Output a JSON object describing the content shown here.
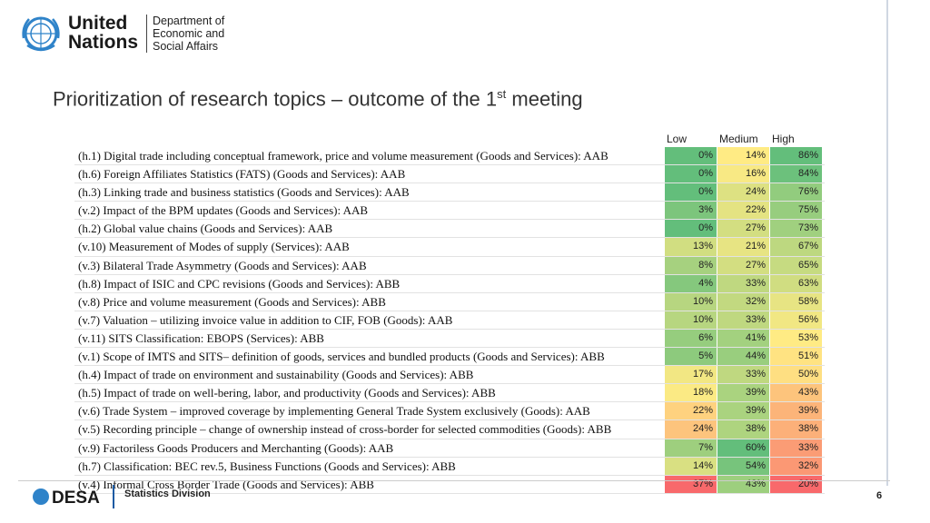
{
  "header": {
    "org_line1": "United",
    "org_line2": "Nations",
    "dept_line1": "Department of",
    "dept_line2": "Economic and",
    "dept_line3": "Social Affairs"
  },
  "slide": {
    "title_main": "Prioritization of research topics – outcome of the 1",
    "title_sup": "st",
    "title_end": " meeting"
  },
  "table": {
    "columns": [
      "Low",
      "Medium",
      "High"
    ],
    "rows": [
      {
        "label": "(h.1) Digital trade including conceptual framework, price and volume measurement (Goods and Services): AAB",
        "low": "0%",
        "medium": "14%",
        "high": "86%"
      },
      {
        "label": "(h.6) Foreign Affiliates Statistics (FATS) (Goods and Services): AAB",
        "low": "0%",
        "medium": "16%",
        "high": "84%"
      },
      {
        "label": "(h.3) Linking trade and business statistics (Goods and Services): AAB",
        "low": "0%",
        "medium": "24%",
        "high": "76%"
      },
      {
        "label": "(v.2) Impact of the BPM updates (Goods and Services): AAB",
        "low": "3%",
        "medium": "22%",
        "high": "75%"
      },
      {
        "label": "(h.2) Global value chains (Goods and Services): AAB",
        "low": "0%",
        "medium": "27%",
        "high": "73%"
      },
      {
        "label": "(v.10) Measurement of Modes of supply (Services): AAB",
        "low": "13%",
        "medium": "21%",
        "high": "67%"
      },
      {
        "label": "(v.3) Bilateral Trade Asymmetry (Goods and Services): AAB",
        "low": "8%",
        "medium": "27%",
        "high": "65%"
      },
      {
        "label": "(h.8) Impact of ISIC and CPC revisions (Goods and Services): ABB",
        "low": "4%",
        "medium": "33%",
        "high": "63%"
      },
      {
        "label": "(v.8) Price and volume measurement (Goods and Services): ABB",
        "low": "10%",
        "medium": "32%",
        "high": "58%"
      },
      {
        "label": "(v.7) Valuation – utilizing invoice value in addition to CIF, FOB (Goods): AAB",
        "low": "10%",
        "medium": "33%",
        "high": "56%"
      },
      {
        "label": "(v.11) SITS Classification: EBOPS (Services): ABB",
        "low": "6%",
        "medium": "41%",
        "high": "53%"
      },
      {
        "label": "(v.1) Scope of IMTS and SITS– definition of goods, services and bundled products (Goods and Services): ABB",
        "low": "5%",
        "medium": "44%",
        "high": "51%"
      },
      {
        "label": "(h.4) Impact of trade on environment and sustainability (Goods and Services): ABB",
        "low": "17%",
        "medium": "33%",
        "high": "50%"
      },
      {
        "label": "(h.5) Impact of trade on well-bering, labor, and productivity (Goods and Services): ABB",
        "low": "18%",
        "medium": "39%",
        "high": "43%"
      },
      {
        "label": "(v.6) Trade System – improved coverage by implementing General Trade System exclusively (Goods): AAB",
        "low": "22%",
        "medium": "39%",
        "high": "39%"
      },
      {
        "label": "(v.5) Recording principle – change of ownership instead of cross-border for selected commodities (Goods): ABB",
        "low": "24%",
        "medium": "38%",
        "high": "38%"
      },
      {
        "label": "(v.9) Factoriless Goods Producers and Merchanting (Goods): AAB",
        "low": "7%",
        "medium": "60%",
        "high": "33%"
      },
      {
        "label": "(h.7) Classification: BEC rev.5, Business Functions (Goods and Services): ABB",
        "low": "14%",
        "medium": "54%",
        "high": "32%"
      },
      {
        "label": "(v.4) Informal Cross Border Trade (Goods and Services): ABB",
        "low": "37%",
        "medium": "43%",
        "high": "20%"
      }
    ]
  },
  "footer": {
    "brand": "DESA",
    "division": "Statistics Division",
    "page": "6"
  }
}
